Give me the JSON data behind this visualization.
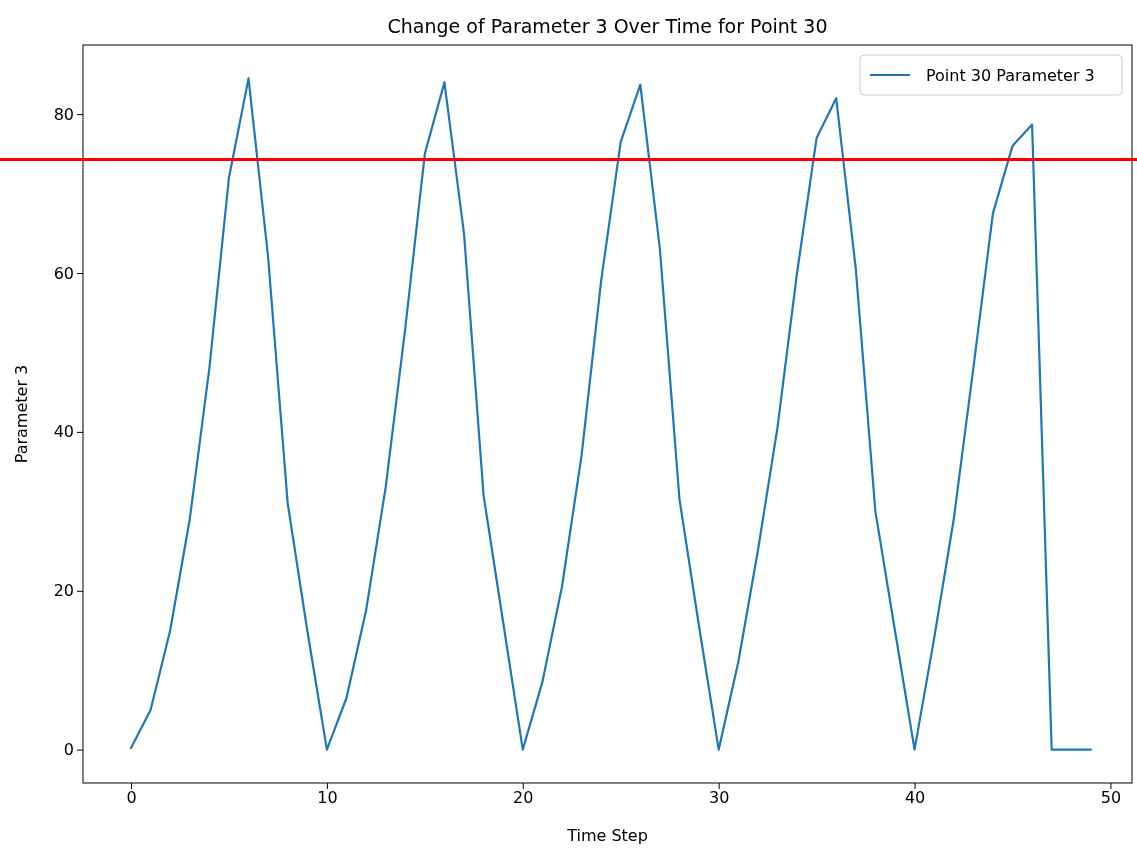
{
  "chart_data": {
    "type": "line",
    "title": "Change of Parameter 3 Over Time for Point 30",
    "xlabel": "Time Step",
    "ylabel": "Parameter 3",
    "x": [
      0,
      1,
      2,
      3,
      4,
      5,
      6,
      7,
      8,
      9,
      10,
      11,
      12,
      13,
      14,
      15,
      16,
      17,
      18,
      19,
      20,
      21,
      22,
      23,
      24,
      25,
      26,
      27,
      28,
      29,
      30,
      31,
      32,
      33,
      34,
      35,
      36,
      37,
      38,
      39,
      40,
      41,
      42,
      43,
      44,
      45,
      46,
      47,
      48,
      49
    ],
    "series": [
      {
        "name": "Point 30 Parameter 3",
        "color": "#1f77b4",
        "values": [
          0.2,
          5,
          15,
          29,
          48,
          72,
          84.5,
          62,
          31,
          15,
          0,
          6.5,
          17.5,
          33,
          53,
          75,
          84,
          65,
          32,
          16,
          0,
          8.5,
          20.5,
          37,
          59,
          76.5,
          83.7,
          63,
          31.5,
          15.5,
          0,
          11,
          25,
          40.5,
          60,
          77,
          82,
          60.5,
          30,
          15,
          0,
          14,
          29,
          48,
          67.5,
          76,
          78.7,
          0,
          0,
          0
        ]
      }
    ],
    "xlim": [
      -2.45,
      51.1
    ],
    "ylim": [
      -4.2,
      88.7
    ],
    "xticks": [
      0,
      10,
      20,
      30,
      40,
      50
    ],
    "yticks": [
      0,
      20,
      40,
      60,
      80
    ],
    "ref_lines": [
      {
        "axis": "y",
        "value": 74.3,
        "color": "#ff0000"
      }
    ],
    "legend": "top right",
    "grid": false,
    "marker": "none",
    "line_style": "solid"
  }
}
